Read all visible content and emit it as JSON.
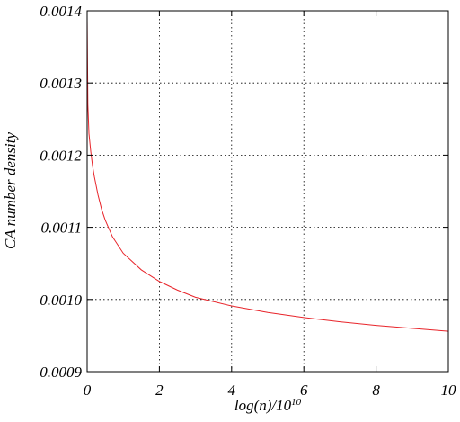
{
  "chart_data": {
    "type": "line",
    "title": "",
    "xlabel": "log(n)/10",
    "xlabel_sup": "10",
    "ylabel": "CA number density",
    "xlim": [
      0,
      10
    ],
    "ylim": [
      0.0009,
      0.0014
    ],
    "xticks": [
      0,
      2,
      4,
      6,
      8,
      10
    ],
    "xtick_labels": [
      "0",
      "2",
      "4",
      "6",
      "8",
      "10"
    ],
    "yticks": [
      0.0009,
      0.001,
      0.0011,
      0.0012,
      0.0013,
      0.0014
    ],
    "ytick_labels": [
      "0.0009",
      "0.0010",
      "0.0011",
      "0.0012",
      "0.0013",
      "0.0014"
    ],
    "grid": true,
    "series": [
      {
        "color": "#e8242a",
        "x": [
          0,
          0.02,
          0.05,
          0.1,
          0.15,
          0.2,
          0.3,
          0.4,
          0.5,
          0.7,
          1.0,
          1.5,
          2.0,
          2.5,
          3.0,
          4.0,
          5.0,
          6.0,
          7.0,
          8.0,
          9.0,
          10.0
        ],
        "y": [
          0.00139,
          0.00127,
          0.00123,
          0.001205,
          0.001185,
          0.00117,
          0.001145,
          0.001125,
          0.00111,
          0.001087,
          0.001064,
          0.001041,
          0.001025,
          0.001013,
          0.001003,
          0.000991,
          0.000982,
          0.000975,
          0.000969,
          0.000964,
          0.00096,
          0.000956
        ]
      }
    ]
  }
}
